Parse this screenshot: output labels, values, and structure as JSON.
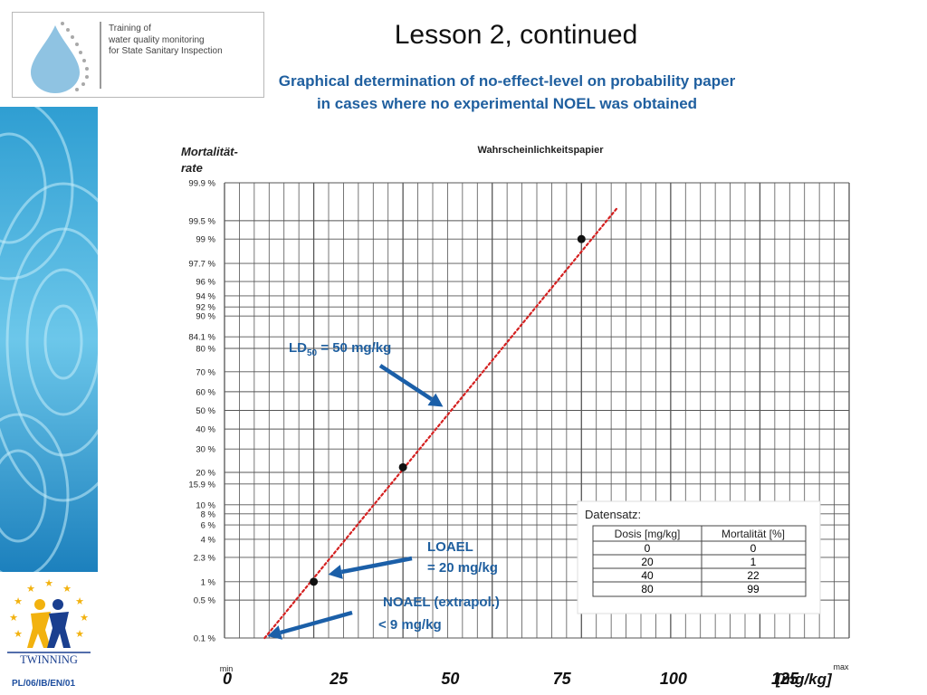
{
  "header": {
    "logo_lines": [
      "Training of",
      "water quality monitoring",
      "for State Sanitary Inspection"
    ],
    "title": "Lesson 2, continued",
    "subtitle_lines": [
      "Graphical determination of no-effect-level on probability paper",
      "in cases where no experimental NOEL was obtained"
    ]
  },
  "sidebar": {
    "emblem_label": "TWINNING",
    "footer_code": "PL/06/IB/EN/01"
  },
  "colors": {
    "accent": "#1f5f9f",
    "fit_line": "#d42020",
    "arrow": "#1b5fa8"
  },
  "chart_data": {
    "type": "scatter",
    "title": "Wahrscheinlichkeitspapier",
    "ylabel_lines": [
      "Mortalität-",
      "rate"
    ],
    "xscale": "linear",
    "yscale": "probit",
    "xlim": [
      0,
      140
    ],
    "ylim_percent": [
      0.1,
      99.9
    ],
    "ytick_labels": [
      "99.9 %",
      "99.5 %",
      "99 %",
      "97.7 %",
      "96 %",
      "94 %",
      "92 %",
      "90 %",
      "84.1 %",
      "80 %",
      "70 %",
      "60 %",
      "50 %",
      "40 %",
      "30 %",
      "20 %",
      "15.9 %",
      "10 %",
      "8 %",
      "6 %",
      "4 %",
      "2.3 %",
      "1 %",
      "0.5 %",
      "0.1 %"
    ],
    "ytick_values": [
      99.9,
      99.5,
      99,
      97.7,
      96,
      94,
      92,
      90,
      84.1,
      80,
      70,
      60,
      50,
      40,
      30,
      20,
      15.9,
      10,
      8,
      6,
      4,
      2.3,
      1,
      0.5,
      0.1
    ],
    "xtick_labels": [
      "min",
      "0",
      "25",
      "50",
      "75",
      "100",
      "125",
      "[mg/kg]",
      "max"
    ],
    "xtick_values": [
      0,
      25,
      50,
      75,
      100,
      125
    ],
    "series": [
      {
        "points": [
          {
            "x": 20,
            "y": 1
          },
          {
            "x": 40,
            "y": 22
          },
          {
            "x": 80,
            "y": 99
          }
        ]
      }
    ],
    "fit_line": {
      "x_start": 9,
      "y_start": 0.1,
      "x_end": 88,
      "y_end": 99.7
    },
    "grid": true,
    "annotations": [
      {
        "id": "ld50",
        "text_main": "LD",
        "text_sub": "50",
        "text_rest": " = 50 mg/kg",
        "target_x": 50,
        "target_y": 50
      },
      {
        "id": "loael",
        "lines": [
          "LOAEL",
          "= 20 mg/kg"
        ],
        "target_x": 20,
        "target_y": 1
      },
      {
        "id": "noael",
        "lines": [
          "NOAEL (extrapol.)",
          "< 9 mg/kg"
        ],
        "target_x": 9,
        "target_y": 0.1
      }
    ],
    "dataset_table": {
      "caption": "Datensatz:",
      "headers": [
        "Dosis [mg/kg]",
        "Mortalität [%]"
      ],
      "rows": [
        [
          "0",
          "0"
        ],
        [
          "20",
          "1"
        ],
        [
          "40",
          "22"
        ],
        [
          "80",
          "99"
        ]
      ]
    }
  }
}
